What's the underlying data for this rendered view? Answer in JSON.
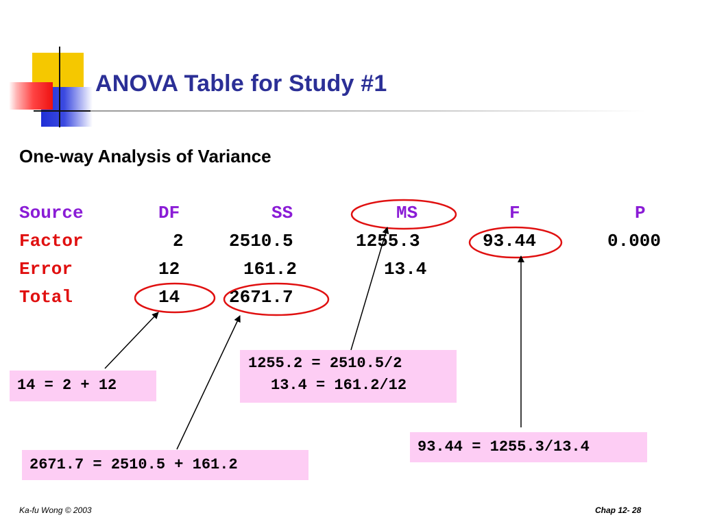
{
  "slide": {
    "title": "ANOVA Table for Study #1",
    "subtitle": "One-way Analysis of Variance"
  },
  "table": {
    "headers": [
      "Source",
      "DF",
      "SS",
      "MS",
      "F",
      "P"
    ],
    "rows": [
      {
        "source": "Factor",
        "df": "2",
        "ss": "2510.5",
        "ms": "1255.3",
        "f": "93.44",
        "p": "0.000"
      },
      {
        "source": "Error",
        "df": "12",
        "ss": "161.2",
        "ms": "13.4",
        "f": "",
        "p": ""
      },
      {
        "source": "Total",
        "df": "14",
        "ss": "2671.7",
        "ms": "",
        "f": "",
        "p": ""
      }
    ]
  },
  "annotations": {
    "df_total": "14 = 2 + 12",
    "ss_total": "2671.7 = 2510.5 + 161.2",
    "ms_factor": "1255.2 = 2510.5/2",
    "ms_error": "13.4 = 161.2/12",
    "f_value": "93.44 = 1255.3/13.4"
  },
  "footer": {
    "left": "Ka-fu Wong © 2003",
    "right": "Chap 12- 28"
  },
  "colors": {
    "title": "#2b2f96",
    "header": "#8a1cd6",
    "row_label": "#e01010",
    "circle": "#e01010",
    "callout_bg": "#fdcdf4"
  }
}
